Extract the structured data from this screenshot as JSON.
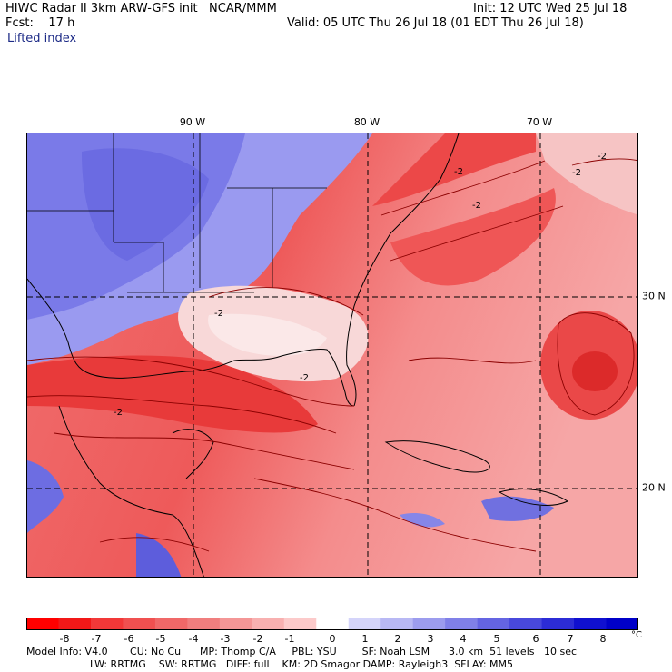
{
  "header": {
    "line1_left": "HIWC Radar II 3km ARW-GFS init   NCAR/MMM",
    "line1_right": "Init: 12 UTC Wed 25 Jul 18",
    "line2_left": "Fcst:    17 h",
    "line2_right": "Valid: 05 UTC Thu 26 Jul 18 (01 EDT Thu 26 Jul 18)",
    "field_name": "Lifted index"
  },
  "map": {
    "lon_labels": [
      "90 W",
      "80 W",
      "70 W"
    ],
    "lat_labels": [
      "30 N",
      "20 N"
    ],
    "contour_labels": [
      "-2",
      "-2",
      "-2",
      "-2",
      "-2",
      "-2",
      "-2"
    ],
    "colors": {
      "negative_strong": "#e8222c",
      "negative_mid": "#f06a6a",
      "negative_light": "#f8b4b4",
      "neutral": "#ffffff",
      "positive_light": "#b9b9f2",
      "positive_mid": "#7474e6",
      "positive_strong": "#3b3bd8",
      "coastline": "#000000",
      "contour": "#8b0000"
    }
  },
  "colorbar": {
    "tick_labels": [
      "-8",
      "-7",
      "-6",
      "-5",
      "-4",
      "-3",
      "-2",
      "-1",
      "0",
      "1",
      "2",
      "3",
      "4",
      "5",
      "6",
      "7",
      "8"
    ],
    "unit": "°C",
    "colors": [
      "#ff0000",
      "#f21818",
      "#f23838",
      "#f05050",
      "#f06868",
      "#f07e7e",
      "#f49696",
      "#f8b0b0",
      "#fccaca",
      "#ffffff",
      "#d4d4fa",
      "#b8b8f4",
      "#9c9cee",
      "#8080e8",
      "#6464e2",
      "#4848dc",
      "#2c2cd6",
      "#1010d0",
      "#0000c8"
    ]
  },
  "footer": {
    "line1": "Model Info: V4.0       CU: No Cu      MP: Thomp C/A     PBL: YSU        SF: Noah LSM      3.0 km  51 levels   10 sec",
    "line2": "LW: RRTMG    SW: RRTMG   DIFF: full    KM: 2D Smagor DAMP: Rayleigh3  SFLAY: MM5"
  }
}
